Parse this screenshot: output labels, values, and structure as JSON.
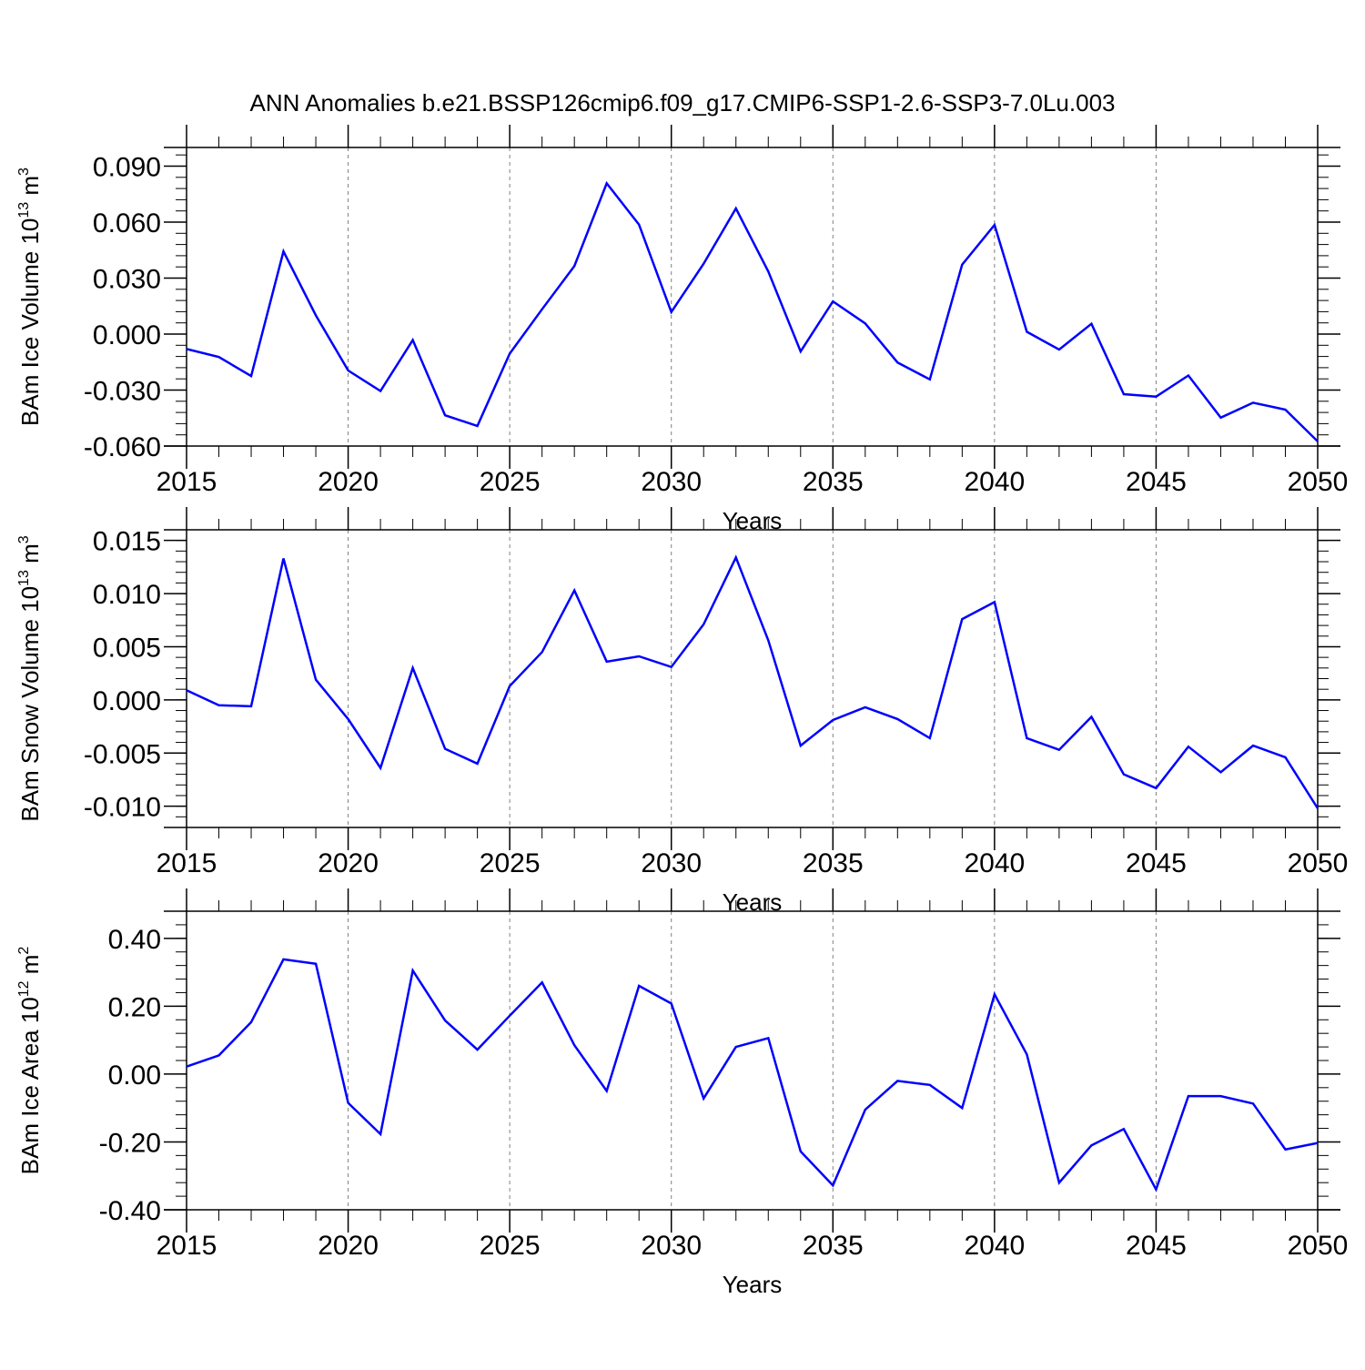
{
  "title": "ANN Anomalies b.e21.BSSP126cmip6.f09_g17.CMIP6-SSP1-2.6-SSP3-7.0Lu.003",
  "colors": {
    "line": "#0000ff",
    "axis": "#000000",
    "grid": "#808080"
  },
  "chart_data": [
    {
      "type": "line",
      "ylabel": "BAm Ice Volume",
      "yunit": {
        "base": "10",
        "exp": "13",
        "unit": "m",
        "unit_exp": "3"
      },
      "xlabel": "Years",
      "xlim": [
        2015,
        2050
      ],
      "ylim": [
        -0.06,
        0.1
      ],
      "yticks": [
        0.09,
        0.06,
        0.03,
        0.0,
        -0.03,
        -0.06
      ],
      "ytick_labels": [
        "0.090",
        "0.060",
        "0.030",
        "0.000",
        "-0.030",
        "-0.060"
      ],
      "xticks": [
        2015,
        2020,
        2025,
        2030,
        2035,
        2040,
        2045,
        2050
      ],
      "xtick_labels": [
        "2015",
        "2020",
        "2025",
        "2030",
        "2035",
        "2040",
        "2045",
        "2050"
      ],
      "grid": "vertical dashed at major x ticks",
      "x": [
        2015,
        2016,
        2017,
        2018,
        2019,
        2020,
        2021,
        2022,
        2023,
        2024,
        2025,
        2026,
        2027,
        2028,
        2029,
        2030,
        2031,
        2032,
        2033,
        2034,
        2035,
        2036,
        2037,
        2038,
        2039,
        2040,
        2041,
        2042,
        2043,
        2044,
        2045,
        2046,
        2047,
        2048,
        2049,
        2050
      ],
      "values": [
        -0.008,
        -0.0123,
        -0.0225,
        0.0443,
        0.01,
        -0.0195,
        -0.0305,
        -0.0032,
        -0.0435,
        -0.0492,
        -0.0105,
        0.0133,
        0.0365,
        0.0808,
        0.0587,
        0.0118,
        0.0377,
        0.0673,
        0.0335,
        -0.0093,
        0.0175,
        0.0057,
        -0.0152,
        -0.0243,
        0.0372,
        0.0585,
        0.0012,
        -0.0083,
        0.0055,
        -0.0322,
        -0.0335,
        -0.0222,
        -0.0448,
        -0.0368,
        -0.0405,
        -0.0575
      ]
    },
    {
      "type": "line",
      "ylabel": "BAm Snow Volume",
      "yunit": {
        "base": "10",
        "exp": "13",
        "unit": "m",
        "unit_exp": "3"
      },
      "xlabel": "Years",
      "xlim": [
        2015,
        2050
      ],
      "ylim": [
        -0.012,
        0.016
      ],
      "yticks": [
        0.015,
        0.01,
        0.005,
        0.0,
        -0.005,
        -0.01
      ],
      "ytick_labels": [
        "0.015",
        "0.010",
        "0.005",
        "0.000",
        "-0.005",
        "-0.010"
      ],
      "xticks": [
        2015,
        2020,
        2025,
        2030,
        2035,
        2040,
        2045,
        2050
      ],
      "xtick_labels": [
        "2015",
        "2020",
        "2025",
        "2030",
        "2035",
        "2040",
        "2045",
        "2050"
      ],
      "grid": "vertical dashed at major x ticks",
      "x": [
        2015,
        2016,
        2017,
        2018,
        2019,
        2020,
        2021,
        2022,
        2023,
        2024,
        2025,
        2026,
        2027,
        2028,
        2029,
        2030,
        2031,
        2032,
        2033,
        2034,
        2035,
        2036,
        2037,
        2038,
        2039,
        2040,
        2041,
        2042,
        2043,
        2044,
        2045,
        2046,
        2047,
        2048,
        2049,
        2050
      ],
      "values": [
        0.0009,
        -0.0005,
        -0.0006,
        0.0133,
        0.0019,
        -0.0018,
        -0.0064,
        0.003,
        -0.0046,
        -0.006,
        0.0013,
        0.0045,
        0.0103,
        0.0036,
        0.0041,
        0.0031,
        0.0071,
        0.0134,
        0.0056,
        -0.0043,
        -0.0019,
        -0.0007,
        -0.0018,
        -0.0036,
        0.0076,
        0.0092,
        -0.0036,
        -0.0047,
        -0.0016,
        -0.007,
        -0.0083,
        -0.0044,
        -0.0068,
        -0.0043,
        -0.0054,
        -0.0102
      ]
    },
    {
      "type": "line",
      "ylabel": "BAm Ice Area",
      "yunit": {
        "base": "10",
        "exp": "12",
        "unit": "m",
        "unit_exp": "2"
      },
      "xlabel": "Years",
      "xlim": [
        2015,
        2050
      ],
      "ylim": [
        -0.4,
        0.48
      ],
      "yticks": [
        0.4,
        0.2,
        0.0,
        -0.2,
        -0.4
      ],
      "ytick_labels": [
        "0.40",
        "0.20",
        "0.00",
        "-0.20",
        "-0.40"
      ],
      "xticks": [
        2015,
        2020,
        2025,
        2030,
        2035,
        2040,
        2045,
        2050
      ],
      "xtick_labels": [
        "2015",
        "2020",
        "2025",
        "2030",
        "2035",
        "2040",
        "2045",
        "2050"
      ],
      "grid": "vertical dashed at major x ticks",
      "x": [
        2015,
        2016,
        2017,
        2018,
        2019,
        2020,
        2021,
        2022,
        2023,
        2024,
        2025,
        2026,
        2027,
        2028,
        2029,
        2030,
        2031,
        2032,
        2033,
        2034,
        2035,
        2036,
        2037,
        2038,
        2039,
        2040,
        2041,
        2042,
        2043,
        2044,
        2045,
        2046,
        2047,
        2048,
        2049,
        2050
      ],
      "values": [
        0.022,
        0.055,
        0.153,
        0.338,
        0.325,
        -0.085,
        -0.177,
        0.305,
        0.158,
        0.072,
        0.172,
        0.27,
        0.085,
        -0.05,
        0.26,
        0.208,
        -0.072,
        0.08,
        0.106,
        -0.228,
        -0.328,
        -0.105,
        -0.02,
        -0.032,
        -0.1,
        0.235,
        0.058,
        -0.32,
        -0.21,
        -0.162,
        -0.34,
        -0.065,
        -0.065,
        -0.087,
        -0.222,
        -0.203
      ]
    }
  ]
}
